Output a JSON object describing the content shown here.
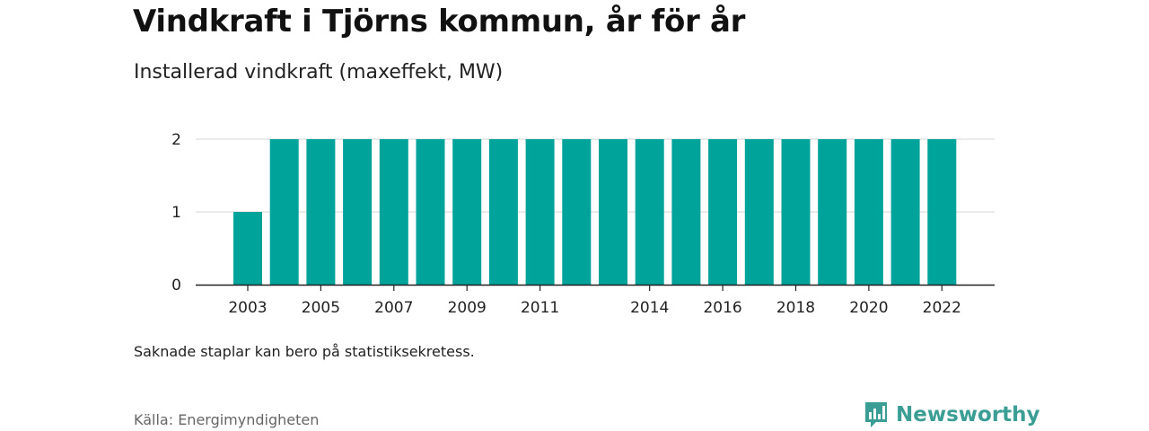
{
  "header": {
    "title": "Vindkraft i Tjörns kommun, år för år",
    "subtitle": "Installerad vindkraft (maxeffekt, MW)"
  },
  "footer": {
    "note": "Saknade staplar kan bero på statistiksekretess.",
    "source": "Källa: Energimyndigheten",
    "brand": "Newsworthy",
    "brand_icon": "bar-chart-logo-icon"
  },
  "colors": {
    "bar": "#00a39a",
    "grid": "#dddddd",
    "axis": "#222222",
    "brand": "#3a9e95"
  },
  "chart_data": {
    "type": "bar",
    "categories": [
      "2003",
      "2004",
      "2005",
      "2006",
      "2007",
      "2008",
      "2009",
      "2010",
      "2011",
      "2012",
      "2013",
      "2014",
      "2015",
      "2016",
      "2017",
      "2018",
      "2019",
      "2020",
      "2021",
      "2022"
    ],
    "values": [
      1,
      2,
      2,
      2,
      2,
      2,
      2,
      2,
      2,
      2,
      2,
      2,
      2,
      2,
      2,
      2,
      2,
      2,
      2,
      2
    ],
    "tick_labels": [
      "2003",
      "2005",
      "2007",
      "2009",
      "2011",
      "2014",
      "2016",
      "2018",
      "2020",
      "2022"
    ],
    "y_ticks": [
      0,
      1,
      2
    ],
    "ylim": [
      0,
      2
    ],
    "grid": true,
    "title": "Vindkraft i Tjörns kommun, år för år",
    "subtitle": "Installerad vindkraft (maxeffekt, MW)",
    "xlabel": "",
    "ylabel": ""
  }
}
